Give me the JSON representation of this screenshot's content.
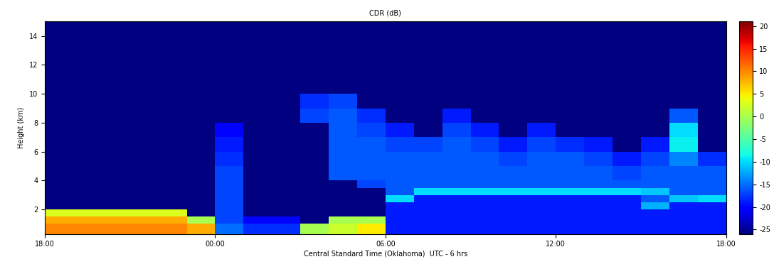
{
  "chart_data": {
    "type": "heatmap",
    "title": "CDR (dB)",
    "x_label": "Central Standard Time (Oklahoma)  UTC - 6 hrs",
    "y_label": "Height (km)",
    "x": [
      0,
      1,
      2,
      3,
      4,
      5,
      6,
      7,
      8,
      9,
      10,
      11,
      12,
      13,
      14,
      15,
      16,
      17,
      18,
      19,
      20,
      21,
      22,
      23,
      24
    ],
    "y": [
      0.3,
      1,
      1.5,
      2,
      2.5,
      3,
      3.5,
      4,
      5,
      6,
      7,
      8,
      9,
      10,
      12,
      15
    ],
    "cells": [
      [
        10,
        10,
        10,
        10,
        10,
        8,
        -15,
        -18,
        -18,
        0,
        2,
        5,
        -19,
        -19,
        -19,
        -19,
        -19,
        -19,
        -19,
        -19,
        -19,
        -19,
        -19,
        -19
      ],
      [
        8,
        8,
        8,
        8,
        8,
        0,
        -17,
        -20,
        -20,
        null,
        0,
        0,
        -19,
        -19,
        -19,
        -19,
        -19,
        -19,
        -19,
        -19,
        -19,
        -19,
        -19,
        -19
      ],
      [
        3,
        3,
        3,
        3,
        3,
        null,
        -17,
        null,
        null,
        null,
        null,
        null,
        -19,
        -19,
        -19,
        -19,
        -19,
        -19,
        -19,
        -19,
        -19,
        -19,
        -19,
        -19
      ],
      [
        null,
        null,
        null,
        null,
        null,
        null,
        -17,
        null,
        null,
        null,
        null,
        null,
        -19,
        -19,
        -19,
        -19,
        -19,
        -19,
        -19,
        -19,
        -19,
        -12,
        -19,
        -19
      ],
      [
        null,
        null,
        null,
        null,
        null,
        null,
        -17,
        null,
        null,
        null,
        null,
        null,
        -10,
        -19,
        -19,
        -19,
        -19,
        -19,
        -19,
        -19,
        -19,
        -16,
        -11,
        -10
      ],
      [
        null,
        null,
        null,
        null,
        null,
        null,
        -17,
        null,
        null,
        null,
        null,
        null,
        -16,
        -10,
        -10,
        -10,
        -10,
        -10,
        -10,
        -10,
        -10,
        -11,
        -16,
        -16
      ],
      [
        null,
        null,
        null,
        null,
        null,
        null,
        -17,
        null,
        null,
        null,
        null,
        -17,
        -16,
        -16,
        -16,
        -16,
        -16,
        -16,
        -16,
        -16,
        -16,
        -16,
        -16,
        -16
      ],
      [
        null,
        null,
        null,
        null,
        null,
        null,
        -17,
        null,
        null,
        null,
        -16,
        -16,
        -16,
        -16,
        -16,
        -16,
        -16,
        -16,
        -16,
        -16,
        -17,
        -16,
        -16,
        -16
      ],
      [
        null,
        null,
        null,
        null,
        null,
        null,
        -18,
        null,
        null,
        null,
        -16,
        -16,
        -16,
        -16,
        -16,
        -16,
        -17,
        -16,
        -16,
        -17,
        -19,
        -17,
        -14,
        -18
      ],
      [
        null,
        null,
        null,
        null,
        null,
        null,
        -19,
        null,
        null,
        null,
        -16,
        -16,
        -17,
        -17,
        -16,
        -17,
        -19,
        -17,
        -18,
        -19,
        null,
        -19,
        -9,
        null
      ],
      [
        null,
        null,
        null,
        null,
        null,
        null,
        -20,
        null,
        null,
        null,
        -16,
        -17,
        -19,
        null,
        -17,
        -19,
        null,
        -19,
        null,
        null,
        null,
        null,
        -10,
        null
      ],
      [
        null,
        null,
        null,
        null,
        null,
        null,
        null,
        null,
        null,
        -17,
        -16,
        -18,
        null,
        null,
        -19,
        null,
        null,
        null,
        null,
        null,
        null,
        null,
        -16,
        null
      ],
      [
        null,
        null,
        null,
        null,
        null,
        null,
        null,
        null,
        null,
        -18,
        -17,
        null,
        null,
        null,
        null,
        null,
        null,
        null,
        null,
        null,
        null,
        null,
        null,
        null
      ],
      [
        null,
        null,
        null,
        null,
        null,
        null,
        null,
        null,
        null,
        null,
        null,
        null,
        null,
        null,
        null,
        null,
        null,
        null,
        null,
        null,
        null,
        null,
        null,
        null
      ],
      [
        null,
        null,
        null,
        null,
        null,
        null,
        null,
        null,
        null,
        null,
        null,
        null,
        null,
        null,
        null,
        null,
        null,
        null,
        null,
        null,
        null,
        null,
        null,
        null
      ]
    ],
    "xlim": [
      0,
      24
    ],
    "ylim": [
      0.3,
      15
    ],
    "xticks": [
      {
        "value": 0,
        "label": "18:00"
      },
      {
        "value": 6,
        "label": "00:00"
      },
      {
        "value": 12,
        "label": "06:00"
      },
      {
        "value": 18,
        "label": "12:00"
      },
      {
        "value": 24,
        "label": "18:00"
      }
    ],
    "yticks": [
      2,
      4,
      6,
      8,
      10,
      12,
      14
    ],
    "colorbar_range": [
      -26,
      21
    ],
    "colorbar_ticks": [
      -25,
      -20,
      -15,
      -10,
      -5,
      0,
      5,
      10,
      15,
      20
    ]
  }
}
